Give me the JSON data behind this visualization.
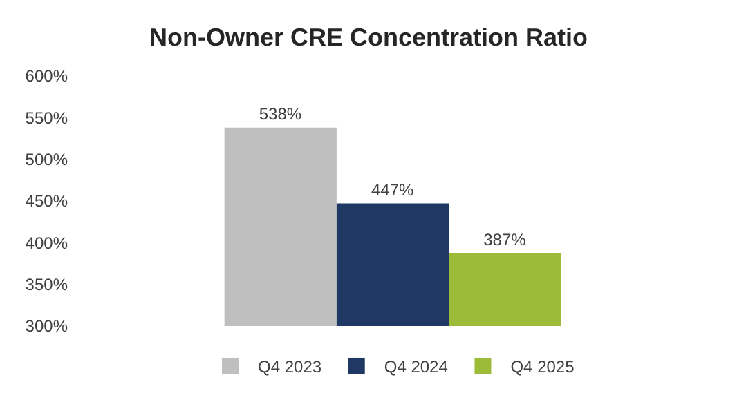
{
  "chart_data": {
    "type": "bar",
    "title": "Non-Owner CRE Concentration Ratio",
    "categories": [
      null
    ],
    "series": [
      {
        "name": "Q4 2023",
        "color": "#bfbfbf",
        "values": [
          538
        ],
        "value_labels": [
          "538%"
        ]
      },
      {
        "name": "Q4 2024",
        "color": "#1f3864",
        "values": [
          447
        ],
        "value_labels": [
          "447%"
        ]
      },
      {
        "name": "Q4 2025",
        "color": "#9bbb39",
        "values": [
          387
        ],
        "value_labels": [
          "387%"
        ]
      }
    ],
    "ylim": [
      300,
      600
    ],
    "yticks": [
      {
        "value": 300,
        "label": "300%"
      },
      {
        "value": 350,
        "label": "350%"
      },
      {
        "value": 400,
        "label": "400%"
      },
      {
        "value": 450,
        "label": "450%"
      },
      {
        "value": 500,
        "label": "500%"
      },
      {
        "value": 550,
        "label": "550%"
      },
      {
        "value": 600,
        "label": "600%"
      }
    ],
    "legend": "bottom"
  }
}
